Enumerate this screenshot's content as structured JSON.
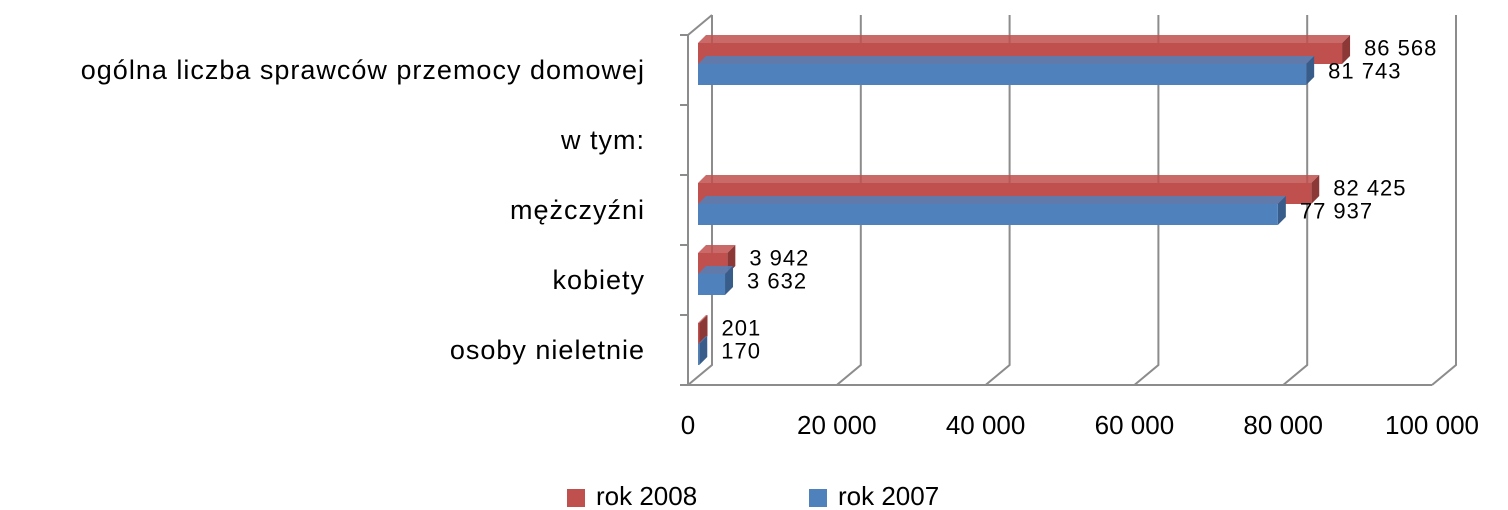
{
  "chart_data": {
    "type": "bar",
    "orientation": "horizontal",
    "categories": [
      "ogólna liczba sprawców przemocy domowej",
      "w tym:",
      "mężczyźni",
      "kobiety",
      "osoby nieletnie"
    ],
    "series": [
      {
        "name": "rok 2008",
        "color": "#c0504d",
        "values": [
          86568,
          null,
          82425,
          3942,
          201
        ],
        "value_labels": [
          "86 568",
          null,
          "82 425",
          "3 942",
          "201"
        ]
      },
      {
        "name": "rok 2007",
        "color": "#4f81bd",
        "values": [
          81743,
          null,
          77937,
          3632,
          170
        ],
        "value_labels": [
          "81 743",
          null,
          "77 937",
          "3 632",
          "170"
        ]
      }
    ],
    "xlim": [
      0,
      100000
    ],
    "xticks": [
      0,
      {
        "value": 20000,
        "label": "20 000"
      },
      {
        "value": 40000,
        "label": "40 000"
      },
      {
        "value": 60000,
        "label": "60 000"
      },
      {
        "value": 80000,
        "label": "80 000"
      },
      {
        "value": 100000,
        "label": "100 000"
      }
    ],
    "grid": true,
    "legend": "bottom"
  }
}
